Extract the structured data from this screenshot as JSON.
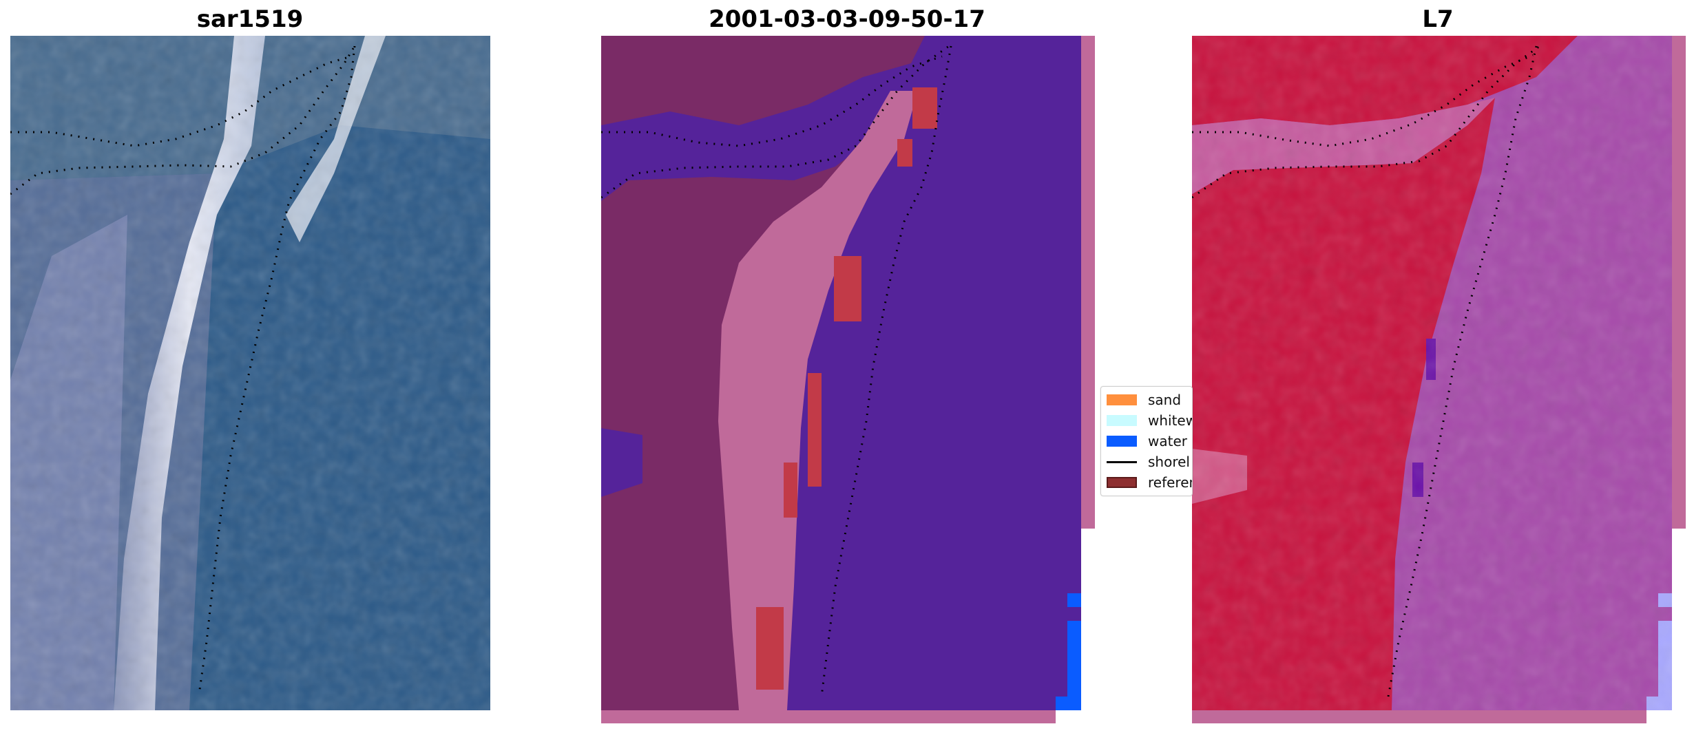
{
  "panels": [
    {
      "id": "rgb",
      "title": "sar1519"
    },
    {
      "id": "classified",
      "title": "2001-03-03-09-50-17"
    },
    {
      "id": "index",
      "title": "L7"
    }
  ],
  "legend": {
    "items": [
      {
        "label": "sand",
        "color": "#ff8f3d",
        "kind": "patch"
      },
      {
        "label": "whitew",
        "color": "#c8fbff",
        "kind": "patch"
      },
      {
        "label": "water",
        "color": "#0a5cff",
        "kind": "patch"
      },
      {
        "label": "shorel",
        "color": "#000000",
        "kind": "line"
      },
      {
        "label": "referen",
        "color": "#8e2f30",
        "kind": "patch-outlined"
      }
    ]
  },
  "colors": {
    "land_purple": "#7a2b66",
    "water_indigo": "#55239a",
    "dune_pink": "#c06a9a",
    "red_pixels": "#c23a48",
    "index_red": "#c8123e",
    "index_magenta": "#a64aaa",
    "rgb_water": "#2c5a88",
    "rgb_beach": "#d8dcf0"
  }
}
